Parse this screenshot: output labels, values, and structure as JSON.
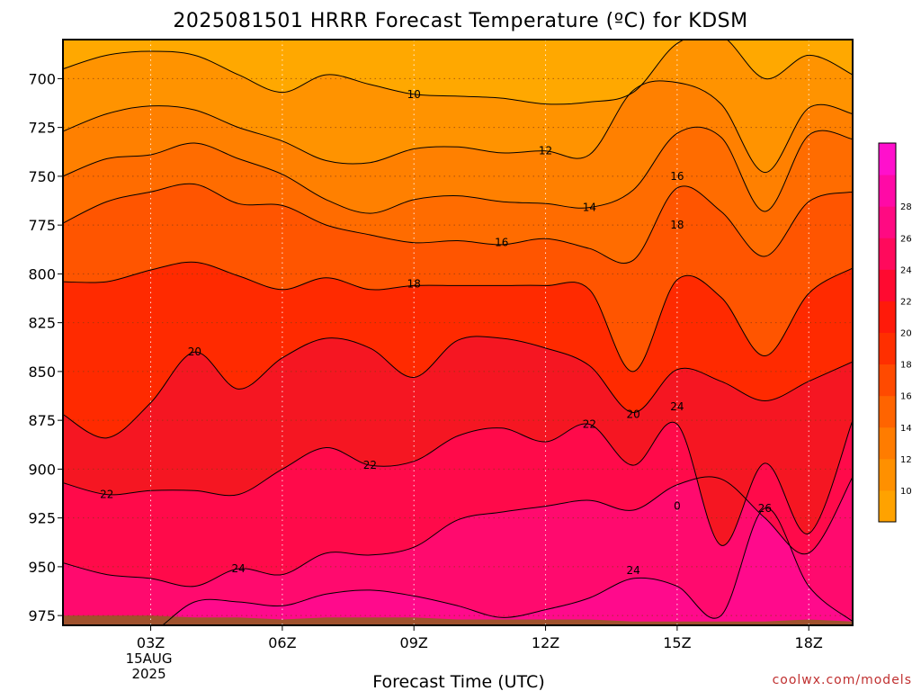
{
  "title": "2025081501 HRRR Forecast Temperature (ºC) for KDSM",
  "credit": "coolwx.com/models",
  "chart_data": {
    "type": "heatmap",
    "title": "2025081501 HRRR Forecast Temperature (ºC) for KDSM",
    "xlabel": "Forecast Time (UTC)",
    "ylabel": "",
    "x_unit": "forecast hour",
    "xlim": [
      1,
      19
    ],
    "ylim": [
      980,
      680
    ],
    "y_reversed": true,
    "grid": true,
    "x_ticks": [
      {
        "hour": 3,
        "label": "03Z",
        "sub": [
          "15AUG",
          "2025"
        ]
      },
      {
        "hour": 6,
        "label": "06Z",
        "sub": []
      },
      {
        "hour": 9,
        "label": "09Z",
        "sub": []
      },
      {
        "hour": 12,
        "label": "12Z",
        "sub": []
      },
      {
        "hour": 15,
        "label": "15Z",
        "sub": []
      },
      {
        "hour": 18,
        "label": "18Z",
        "sub": []
      }
    ],
    "y_ticks": [
      700,
      725,
      750,
      775,
      800,
      825,
      850,
      875,
      900,
      925,
      950,
      975
    ],
    "hours": [
      1,
      2,
      3,
      4,
      5,
      6,
      7,
      8,
      9,
      10,
      11,
      12,
      13,
      14,
      15,
      16,
      17,
      18,
      19
    ],
    "contour_levels": [
      10,
      12,
      14,
      16,
      18,
      20,
      22,
      24,
      26
    ],
    "contours": [
      {
        "level": 10,
        "pressure": [
          695,
          688,
          686,
          688,
          698,
          707,
          698,
          703,
          708,
          709,
          710,
          713,
          712,
          707,
          682,
          678,
          700,
          688,
          698
        ]
      },
      {
        "level": 12,
        "pressure": [
          727,
          718,
          714,
          716,
          725,
          732,
          742,
          743,
          736,
          735,
          738,
          737,
          739,
          706,
          702,
          713,
          748,
          715,
          718
        ]
      },
      {
        "level": 14,
        "pressure": [
          750,
          741,
          739,
          733,
          741,
          749,
          762,
          769,
          762,
          760,
          763,
          764,
          766,
          757,
          728,
          730,
          768,
          729,
          731
        ]
      },
      {
        "level": 16,
        "pressure": [
          774,
          763,
          758,
          754,
          764,
          765,
          775,
          780,
          784,
          783,
          785,
          782,
          787,
          793,
          756,
          768,
          791,
          763,
          758
        ]
      },
      {
        "level": 18,
        "pressure": [
          804,
          804,
          798,
          794,
          801,
          808,
          802,
          808,
          806,
          806,
          806,
          806,
          808,
          850,
          803,
          812,
          842,
          810,
          797
        ]
      },
      {
        "level": 20,
        "pressure": [
          872,
          884,
          866,
          840,
          859,
          843,
          833,
          838,
          853,
          834,
          833,
          838,
          847,
          871,
          849,
          855,
          865,
          855,
          845
        ]
      },
      {
        "level": 22,
        "pressure": [
          907,
          913,
          911,
          911,
          913,
          900,
          889,
          898,
          896,
          883,
          879,
          886,
          877,
          898,
          877,
          939,
          897,
          933,
          875
        ]
      },
      {
        "level": 24,
        "pressure": [
          948,
          954,
          956,
          960,
          951,
          954,
          943,
          944,
          940,
          926,
          922,
          919,
          916,
          921,
          908,
          905,
          925,
          943,
          904
        ]
      },
      {
        "level": 26,
        "pressure": [
          990,
          990,
          984,
          968,
          968,
          970,
          964,
          962,
          965,
          970,
          976,
          972,
          966,
          956,
          960,
          975,
          920,
          960,
          978
        ]
      }
    ],
    "contour_labels": [
      {
        "value": "10",
        "hour": 9,
        "pressure": 708
      },
      {
        "value": "12",
        "hour": 12,
        "pressure": 737
      },
      {
        "value": "14",
        "hour": 13,
        "pressure": 766
      },
      {
        "value": "16",
        "hour": 11,
        "pressure": 784
      },
      {
        "value": "16",
        "hour": 15,
        "pressure": 750
      },
      {
        "value": "18",
        "hour": 9,
        "pressure": 805
      },
      {
        "value": "18",
        "hour": 15,
        "pressure": 775
      },
      {
        "value": "20",
        "hour": 4,
        "pressure": 840
      },
      {
        "value": "20",
        "hour": 14,
        "pressure": 872
      },
      {
        "value": "22",
        "hour": 2,
        "pressure": 913
      },
      {
        "value": "22",
        "hour": 8,
        "pressure": 898
      },
      {
        "value": "22",
        "hour": 13,
        "pressure": 877
      },
      {
        "value": "24",
        "hour": 5,
        "pressure": 951
      },
      {
        "value": "24",
        "hour": 14,
        "pressure": 952
      },
      {
        "value": "24",
        "hour": 15,
        "pressure": 868
      },
      {
        "value": "26",
        "hour": 17,
        "pressure": 920
      },
      {
        "value": "0",
        "hour": 15,
        "pressure": 919
      }
    ],
    "surface_pressure": [
      975,
      975,
      975,
      976,
      976,
      977,
      976,
      976,
      976,
      977,
      977,
      977,
      977,
      978,
      978,
      978,
      978,
      977,
      978
    ],
    "colorbar": {
      "ticks": [
        10,
        12,
        14,
        16,
        18,
        20,
        22,
        24,
        26,
        28
      ],
      "colors": [
        "#ffa200",
        "#ff9000",
        "#ff7c00",
        "#ff6400",
        "#ff4a00",
        "#ff2f00",
        "#ff1a0a",
        "#ff0a30",
        "#ff0a5c",
        "#ff0a82",
        "#ff0aa6",
        "#ff10cc"
      ]
    },
    "fill_colors": [
      "#ffa800",
      "#ff9300",
      "#ff8000",
      "#ff6c00",
      "#ff5500",
      "#ff2a00",
      "#f51622",
      "#ff0a4a",
      "#ff0a6e",
      "#ff0a8c"
    ],
    "ground_color": "#a0522d"
  },
  "legend_title": "",
  "accent_credit_color": "#c03030"
}
